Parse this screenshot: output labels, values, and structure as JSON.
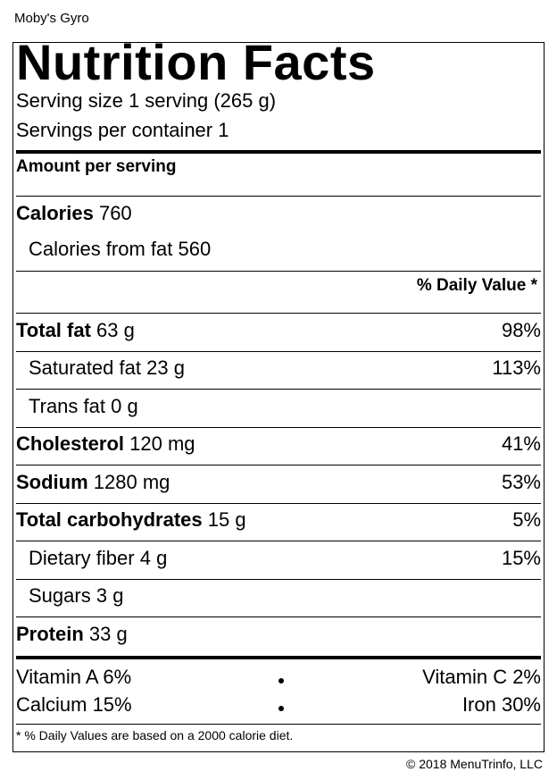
{
  "product_name": "Moby's Gyro",
  "title": "Nutrition Facts",
  "serving_size": "Serving size 1 serving (265 g)",
  "servings_per_container": "Servings per container 1",
  "amount_per_serving": "Amount per serving",
  "calories_label": "Calories",
  "calories_value": "760",
  "calories_from_fat": "Calories from fat 560",
  "daily_value_header": "% Daily Value *",
  "nutrients": [
    {
      "name": "Total fat",
      "amount": "63 g",
      "dv": "98%"
    },
    {
      "name": "Saturated fat",
      "amount": "23 g",
      "dv": "113%"
    },
    {
      "name": "Trans fat",
      "amount": "0 g",
      "dv": ""
    },
    {
      "name": "Cholesterol",
      "amount": "120 mg",
      "dv": "41%"
    },
    {
      "name": "Sodium",
      "amount": "1280 mg",
      "dv": "53%"
    },
    {
      "name": "Total carbohydrates",
      "amount": "15 g",
      "dv": "5%"
    },
    {
      "name": "Dietary fiber",
      "amount": "4 g",
      "dv": "15%"
    },
    {
      "name": "Sugars",
      "amount": "3 g",
      "dv": ""
    },
    {
      "name": "Protein",
      "amount": "33 g",
      "dv": ""
    }
  ],
  "vitamins": [
    {
      "left": "Vitamin A 6%",
      "right": "Vitamin C 2%"
    },
    {
      "left": "Calcium 15%",
      "right": "Iron 30%"
    }
  ],
  "footnote": "* % Daily Values are based on a 2000 calorie diet.",
  "copyright": "© 2018 MenuTrinfo, LLC"
}
